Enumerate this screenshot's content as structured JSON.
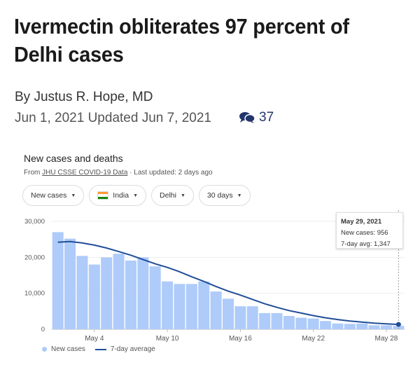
{
  "article": {
    "headline_line1": "Ivermectin obliterates 97 percent of",
    "headline_line2": "Delhi cases",
    "byline": "By Justus R. Hope, MD",
    "dates": "Jun 1, 2021 Updated Jun 7, 2021",
    "comment_count": "37",
    "comment_icon": "comments-icon"
  },
  "chart": {
    "title": "New cases and deaths",
    "source_prefix": "From",
    "source_link": "JHU CSSE COVID-19 Data",
    "source_suffix": "· Last updated: 2 days ago",
    "filters": {
      "metric": "New cases",
      "country": "India",
      "region": "Delhi",
      "range": "30 days"
    },
    "tooltip": {
      "date": "May 29, 2021",
      "cases": "New cases: 956",
      "avg": "7-day avg: 1,347"
    },
    "legend": {
      "cases": "New cases",
      "avg": "7-day average"
    },
    "colors": {
      "bar": "#aecbfa",
      "line": "#1f4e99",
      "flag_saffron": "#ff9933",
      "flag_green": "#138808"
    }
  },
  "chart_data": {
    "type": "bar",
    "title": "New cases and deaths",
    "ylim": [
      0,
      30000
    ],
    "yticks": [
      {
        "value": 30000,
        "label": "30,000"
      },
      {
        "value": 20000,
        "label": "20,000"
      },
      {
        "value": 10000,
        "label": "10,000"
      },
      {
        "value": 0,
        "label": "0"
      }
    ],
    "xticks": [
      {
        "index": 3,
        "label": "May 4"
      },
      {
        "index": 9,
        "label": "May 10"
      },
      {
        "index": 15,
        "label": "May 16"
      },
      {
        "index": 21,
        "label": "May 22"
      },
      {
        "index": 27,
        "label": "May 28"
      }
    ],
    "series": [
      {
        "name": "New cases",
        "values": [
          27000,
          25200,
          20400,
          18000,
          20000,
          21000,
          19100,
          20000,
          17500,
          13300,
          12600,
          12600,
          13300,
          10500,
          8500,
          6400,
          6400,
          4500,
          4500,
          3700,
          3200,
          3000,
          2300,
          1600,
          1500,
          1600,
          1100,
          1100,
          956
        ]
      },
      {
        "name": "7-day average",
        "values": [
          24200,
          24400,
          24000,
          23400,
          22600,
          21600,
          20600,
          19400,
          18200,
          17200,
          16000,
          14600,
          13300,
          11900,
          10600,
          9500,
          8300,
          7100,
          6100,
          5200,
          4500,
          3800,
          3200,
          2700,
          2300,
          2000,
          1700,
          1500,
          1347
        ]
      }
    ]
  }
}
